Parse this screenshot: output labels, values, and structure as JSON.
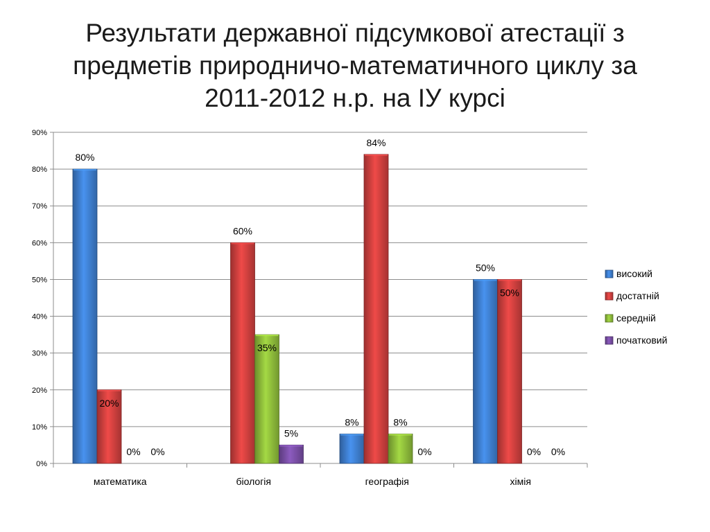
{
  "title_lines": [
    "Результати державної підсумкової атестації  з",
    "предметів природничо-математичного циклу за",
    "2011-2012 н.р. на ІУ курсі"
  ],
  "chart_data": {
    "type": "bar",
    "title": "Результати державної підсумкової атестації  з предметів природничо-математичного циклу за 2011-2012 н.р. на ІУ курсі",
    "categories": [
      "математика",
      "біологія",
      "географія",
      "хімія"
    ],
    "series": [
      {
        "name": "високий",
        "values": [
          80,
          0,
          8,
          50
        ],
        "color": "#3f7fd0"
      },
      {
        "name": "достатній",
        "values": [
          20,
          60,
          84,
          50
        ],
        "color": "#d0403f"
      },
      {
        "name": "середній",
        "values": [
          0,
          35,
          8,
          0
        ],
        "color": "#8fbd3b"
      },
      {
        "name": "початковий",
        "values": [
          0,
          5,
          0,
          0
        ],
        "color": "#7a4fa6"
      }
    ],
    "ylim": [
      0,
      90
    ],
    "yticks": [
      0,
      10,
      20,
      30,
      40,
      50,
      60,
      70,
      80,
      90
    ],
    "ytick_labels": [
      "0%",
      "10%",
      "20%",
      "30%",
      "40%",
      "50%",
      "60%",
      "70%",
      "80%",
      "90%"
    ],
    "data_labels": [
      [
        "80%",
        "",
        "8%",
        "50%"
      ],
      [
        "20%",
        "60%",
        "84%",
        "50%"
      ],
      [
        "0%",
        "35%",
        "8%",
        "0%"
      ],
      [
        "0%",
        "5%",
        "0%",
        "0%"
      ]
    ],
    "grid": true,
    "legend_position": "right",
    "xlabel": "",
    "ylabel": ""
  }
}
